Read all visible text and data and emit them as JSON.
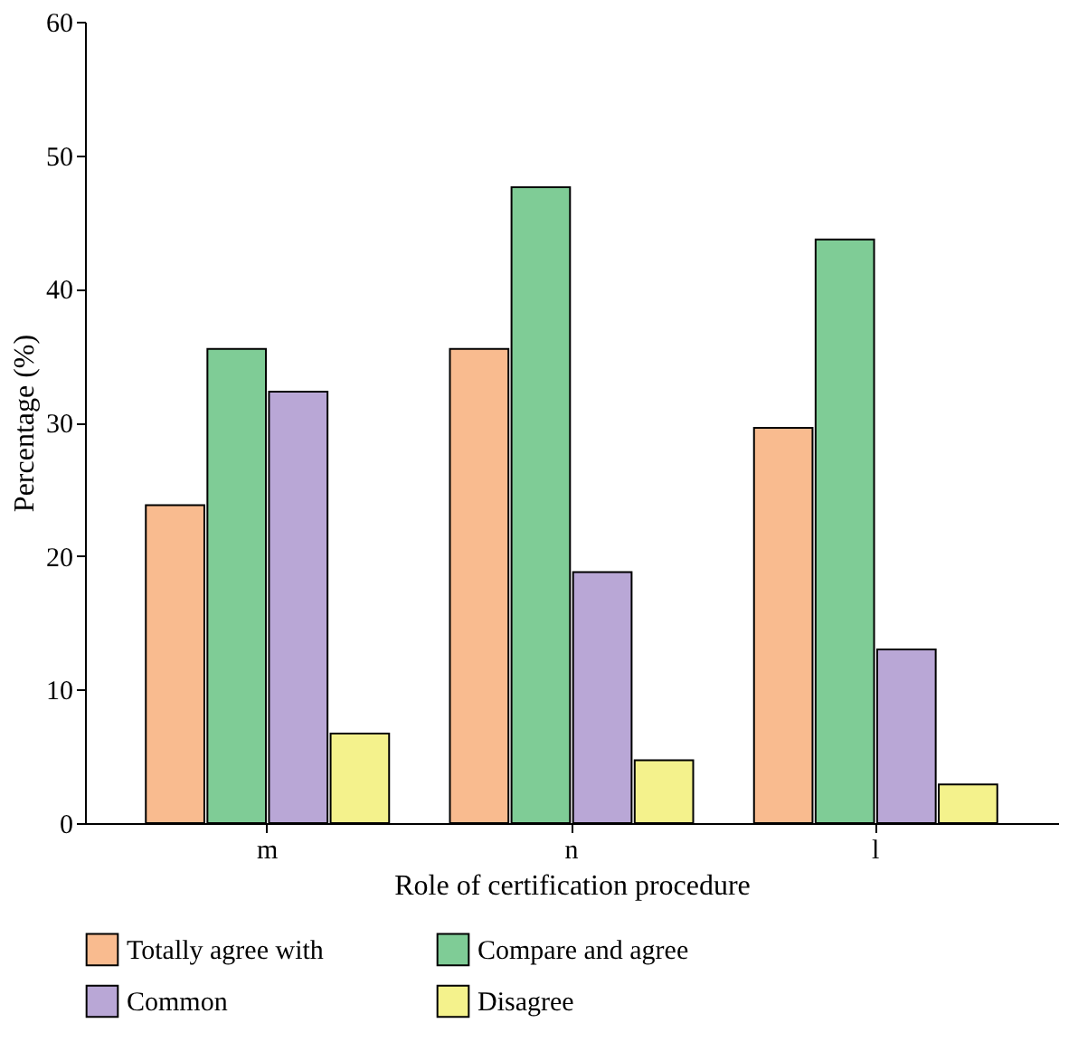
{
  "chart_data": {
    "type": "bar",
    "xlabel": "Role of certification procedure",
    "ylabel": "Percentage (%)",
    "categories": [
      "m",
      "n",
      "l"
    ],
    "series": [
      {
        "name": "Totally agree with",
        "color": "#f9bb8f",
        "values": [
          23.8,
          35.5,
          29.6
        ]
      },
      {
        "name": "Compare and agree",
        "color": "#7fcc96",
        "values": [
          35.5,
          47.6,
          43.7
        ]
      },
      {
        "name": "Common",
        "color": "#b9a7d6",
        "values": [
          32.3,
          18.8,
          13.0
        ]
      },
      {
        "name": "Disagree",
        "color": "#f4f28c",
        "values": [
          6.7,
          4.7,
          2.9
        ]
      }
    ],
    "ylim": [
      0,
      60
    ],
    "yticks": [
      0,
      10,
      20,
      30,
      40,
      50,
      60
    ],
    "grid": false,
    "legend": "bottom"
  }
}
